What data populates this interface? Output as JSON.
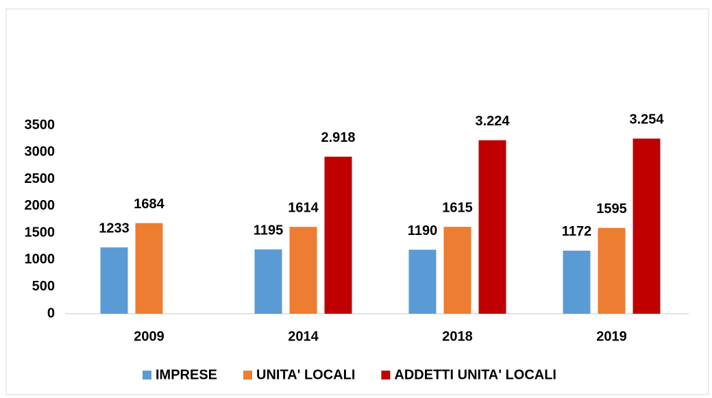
{
  "chart_data": {
    "type": "bar",
    "categories": [
      "2009",
      "2014",
      "2018",
      "2019"
    ],
    "series": [
      {
        "name": "IMPRESE",
        "color": "#5b9bd5",
        "values": [
          1233,
          1195,
          1190,
          1172
        ]
      },
      {
        "name": "UNITA' LOCALI",
        "color": "#ed7d31",
        "values": [
          1684,
          1614,
          1615,
          1595
        ]
      },
      {
        "name": "ADDETTI UNITA' LOCALI",
        "color": "#c00000",
        "values": [
          null,
          2918,
          3224,
          3254
        ],
        "value_labels": [
          null,
          "2.918",
          "3.224",
          "3.254"
        ]
      }
    ],
    "ylim": [
      0,
      3500
    ],
    "yticks": [
      0,
      500,
      1000,
      1500,
      2000,
      2500,
      3000,
      3500
    ],
    "grid": false,
    "legend": "bottom"
  }
}
